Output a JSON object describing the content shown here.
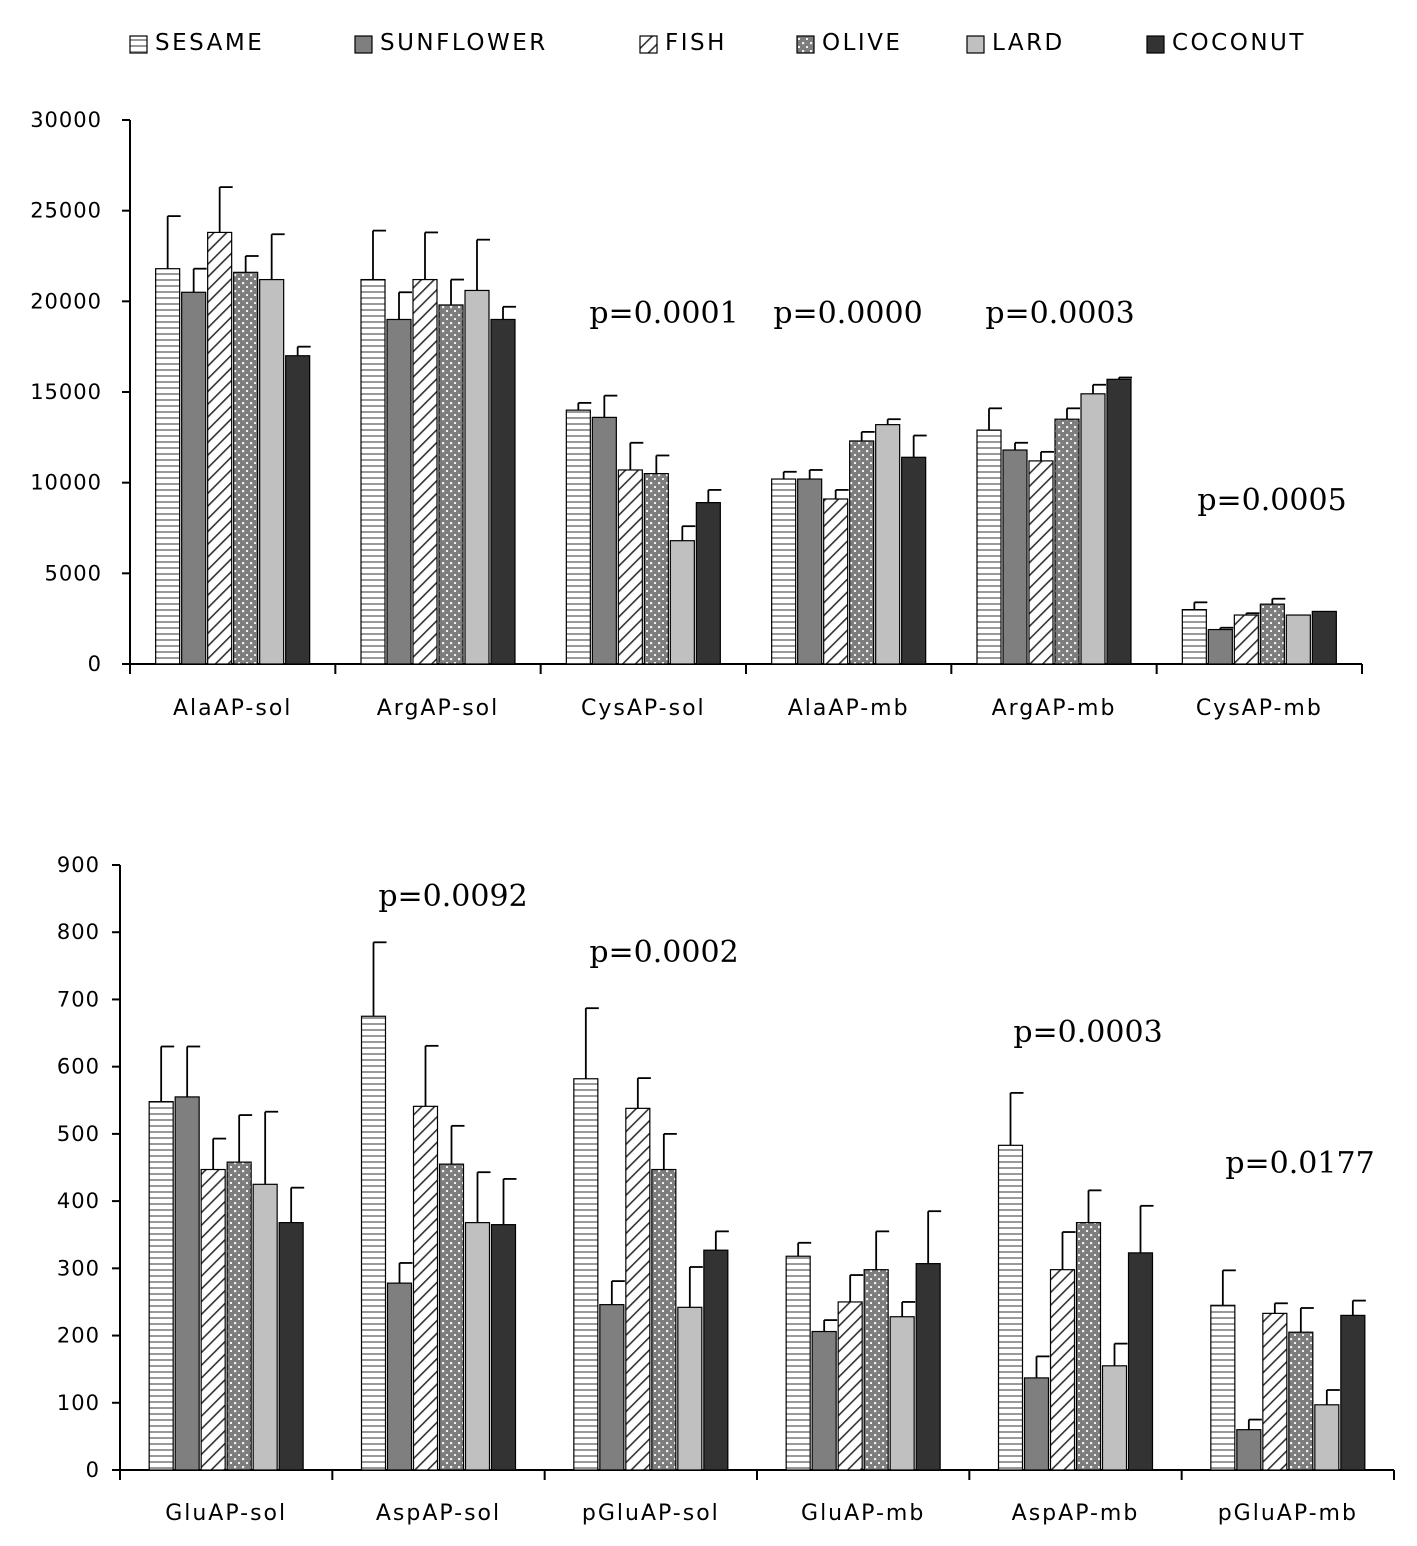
{
  "legend": [
    {
      "name": "SESAME",
      "pattern": "hstripe",
      "color": "#ffffff"
    },
    {
      "name": "SUNFLOWER",
      "pattern": "solid",
      "color": "#7f7f7f"
    },
    {
      "name": "FISH",
      "pattern": "diag",
      "color": "#ffffff"
    },
    {
      "name": "OLIVE",
      "pattern": "dots",
      "color": "#808080"
    },
    {
      "name": "LARD",
      "pattern": "solid",
      "color": "#c0c0c0"
    },
    {
      "name": "COCONUT",
      "pattern": "solid",
      "color": "#333333"
    }
  ],
  "chart_data": [
    {
      "type": "bar",
      "title": "",
      "xlabel": "",
      "ylabel": "",
      "ylim": [
        0,
        30000
      ],
      "yticks": [
        0,
        5000,
        10000,
        15000,
        20000,
        25000,
        30000
      ],
      "ytick_labels": [
        "0",
        "5000",
        "10000",
        "15000",
        "20000",
        "25000",
        "30000"
      ],
      "categories": [
        "AlaAP-sol",
        "ArgAP-sol",
        "CysAP-sol",
        "AlaAP-mb",
        "ArgAP-mb",
        "CysAP-mb"
      ],
      "annotations": [
        "",
        "",
        "p=0.0001",
        "p=0.0000",
        "p=0.0003",
        "p=0.0005"
      ],
      "series": [
        {
          "name": "SESAME",
          "values": [
            21800,
            21200,
            14000,
            10200,
            12900,
            3000
          ],
          "errors": [
            2900,
            2700,
            400,
            400,
            1200,
            400
          ]
        },
        {
          "name": "SUNFLOWER",
          "values": [
            20500,
            19000,
            13600,
            10200,
            11800,
            1900
          ],
          "errors": [
            1300,
            1500,
            1200,
            500,
            400,
            100
          ]
        },
        {
          "name": "FISH",
          "values": [
            23800,
            21200,
            10700,
            9100,
            11200,
            2700
          ],
          "errors": [
            2500,
            2600,
            1500,
            500,
            500,
            100
          ]
        },
        {
          "name": "OLIVE",
          "values": [
            21600,
            19800,
            10500,
            12300,
            13500,
            3300
          ],
          "errors": [
            900,
            1400,
            1000,
            500,
            600,
            300
          ]
        },
        {
          "name": "LARD",
          "values": [
            21200,
            20600,
            6800,
            13200,
            14900,
            2700
          ],
          "errors": [
            2500,
            2800,
            800,
            300,
            500,
            0
          ]
        },
        {
          "name": "COCONUT",
          "values": [
            17000,
            19000,
            8900,
            11400,
            15700,
            2900
          ],
          "errors": [
            500,
            700,
            700,
            1200,
            100,
            0
          ]
        }
      ]
    },
    {
      "type": "bar",
      "title": "",
      "xlabel": "",
      "ylabel": "",
      "ylim": [
        0,
        900
      ],
      "yticks": [
        0,
        100,
        200,
        300,
        400,
        500,
        600,
        700,
        800,
        900
      ],
      "ytick_labels": [
        "0",
        "100",
        "200",
        "300",
        "400",
        "500",
        "600",
        "700",
        "800",
        "900"
      ],
      "categories": [
        "GluAP-sol",
        "AspAP-sol",
        "pGluAP-sol",
        "GluAP-mb",
        "AspAP-mb",
        "pGluAP-mb"
      ],
      "annotations": [
        "",
        "p=0.0092",
        "p=0.0002",
        "",
        "p=0.0003",
        "p=0.0177"
      ],
      "series": [
        {
          "name": "SESAME",
          "values": [
            548,
            675,
            582,
            318,
            483,
            245
          ],
          "errors": [
            82,
            110,
            105,
            20,
            78,
            52
          ]
        },
        {
          "name": "SUNFLOWER",
          "values": [
            555,
            278,
            246,
            206,
            137,
            60
          ],
          "errors": [
            75,
            30,
            35,
            17,
            32,
            15
          ]
        },
        {
          "name": "FISH",
          "values": [
            447,
            541,
            538,
            250,
            298,
            233
          ],
          "errors": [
            46,
            90,
            45,
            40,
            56,
            15
          ]
        },
        {
          "name": "OLIVE",
          "values": [
            458,
            455,
            447,
            298,
            368,
            205
          ],
          "errors": [
            70,
            57,
            53,
            57,
            48,
            36
          ]
        },
        {
          "name": "LARD",
          "values": [
            425,
            368,
            242,
            228,
            155,
            97
          ],
          "errors": [
            108,
            75,
            60,
            22,
            33,
            22
          ]
        },
        {
          "name": "COCONUT",
          "values": [
            368,
            365,
            327,
            307,
            323,
            230
          ],
          "errors": [
            52,
            68,
            28,
            78,
            70,
            22
          ]
        }
      ]
    }
  ]
}
